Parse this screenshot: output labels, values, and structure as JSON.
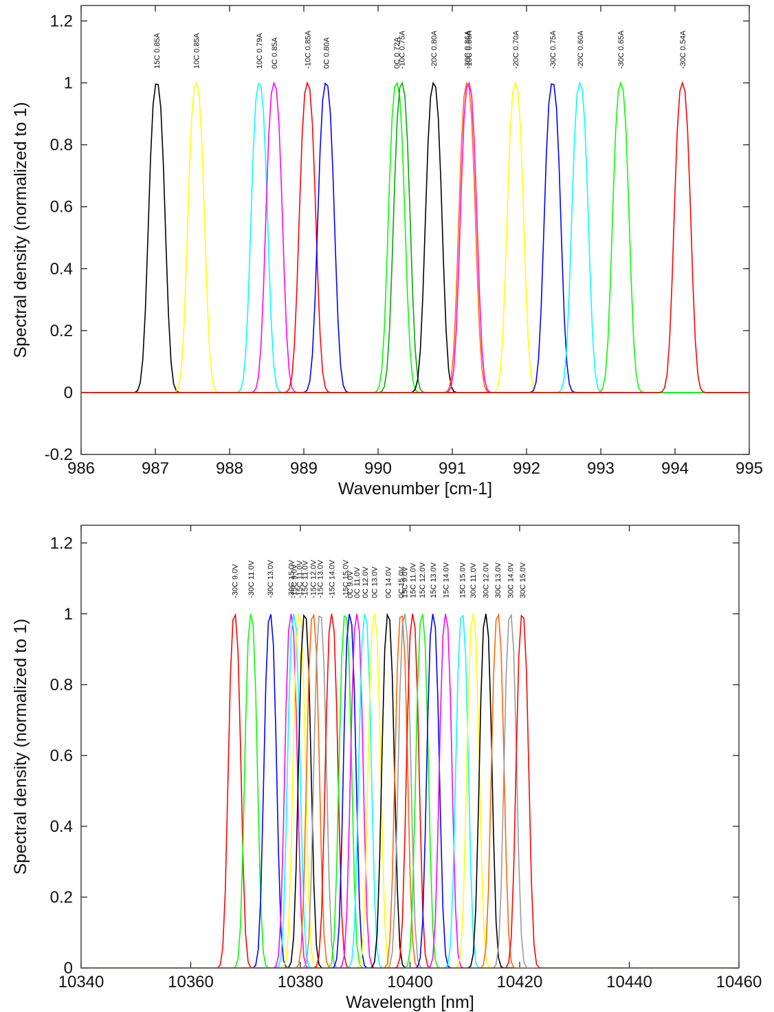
{
  "chart_data": [
    {
      "type": "line",
      "xlabel": "Wavenumber [cm-1]",
      "ylabel": "Spectral density (normalized to 1)",
      "xlim": [
        986,
        995
      ],
      "ylim": [
        -0.2,
        1.25
      ],
      "x_ticks": [
        "986",
        "987",
        "988",
        "989",
        "990",
        "991",
        "992",
        "993",
        "994",
        "995"
      ],
      "y_ticks": [
        "-0.2",
        "0",
        "0.2",
        "0.4",
        "0.6",
        "0.8",
        "1",
        "1.2"
      ],
      "grid": false,
      "series": [
        {
          "name": "15C 0.85A",
          "center": 987.02,
          "fwhm": 0.25,
          "color": "#000000"
        },
        {
          "name": "10C 0.85A",
          "center": 987.55,
          "fwhm": 0.25,
          "color": "#ffff00"
        },
        {
          "name": "10C 0.79A",
          "center": 988.4,
          "fwhm": 0.25,
          "color": "#00ffff"
        },
        {
          "name": "0C 0.85A",
          "center": 988.6,
          "fwhm": 0.25,
          "color": "#ff00ff"
        },
        {
          "name": "-10C 0.85A",
          "center": 989.05,
          "fwhm": 0.25,
          "color": "#ff0000"
        },
        {
          "name": "0C 0.80A",
          "center": 989.3,
          "fwhm": 0.25,
          "color": "#0000ff"
        },
        {
          "name": "0C 0.72A",
          "center": 990.25,
          "fwhm": 0.25,
          "color": "#00ff00"
        },
        {
          "name": "-10C 0.75A",
          "center": 990.32,
          "fwhm": 0.25,
          "color": "#00aa00"
        },
        {
          "name": "-20C 0.80A",
          "center": 990.75,
          "fwhm": 0.25,
          "color": "#000000"
        },
        {
          "name": "-30C 0.86A",
          "center": 991.2,
          "fwhm": 0.25,
          "color": "#ff6600"
        },
        {
          "name": "-10C 0.66A",
          "center": 991.22,
          "fwhm": 0.25,
          "color": "#ff00ff"
        },
        {
          "name": "-20C 0.70A",
          "center": 991.85,
          "fwhm": 0.25,
          "color": "#ffff00"
        },
        {
          "name": "-30C 0.75A",
          "center": 992.35,
          "fwhm": 0.25,
          "color": "#0000ff"
        },
        {
          "name": "-20C 0.60A",
          "center": 992.72,
          "fwhm": 0.25,
          "color": "#00ffff"
        },
        {
          "name": "-30C 0.65A",
          "center": 993.27,
          "fwhm": 0.25,
          "color": "#00ff00"
        },
        {
          "name": "-30C 0.54A",
          "center": 994.1,
          "fwhm": 0.25,
          "color": "#ff0000"
        }
      ]
    },
    {
      "type": "line",
      "xlabel": "Wavelength [nm]",
      "ylabel": "Spectral density (normalized to 1)",
      "xlim": [
        10340,
        10460
      ],
      "ylim": [
        0,
        1.25
      ],
      "x_ticks": [
        "10340",
        "10360",
        "10380",
        "10400",
        "10420",
        "10440",
        "10460"
      ],
      "y_ticks": [
        "0",
        "0.2",
        "0.4",
        "0.6",
        "0.8",
        "1",
        "1.2"
      ],
      "grid": false,
      "series": [
        {
          "name": "-30C 9.0V",
          "center": 10368.0,
          "fwhm": 2.6,
          "color": "#ff0000"
        },
        {
          "name": "-30C 11.0V",
          "center": 10371.0,
          "fwhm": 2.6,
          "color": "#00ff00"
        },
        {
          "name": "-30C 13.0V",
          "center": 10374.5,
          "fwhm": 2.6,
          "color": "#0000ff"
        },
        {
          "name": "-30C 15.0V",
          "center": 10378.3,
          "fwhm": 2.6,
          "color": "#ff00ff"
        },
        {
          "name": "-15C 9.0V",
          "center": 10378.8,
          "fwhm": 2.6,
          "color": "#00ffff"
        },
        {
          "name": "-15C 11.0V",
          "center": 10379.8,
          "fwhm": 2.6,
          "color": "#ffff00"
        },
        {
          "name": "-15C 11.0V",
          "center": 10380.8,
          "fwhm": 2.6,
          "color": "#000000"
        },
        {
          "name": "-15C 12.0V",
          "center": 10382.3,
          "fwhm": 2.6,
          "color": "#ff6600"
        },
        {
          "name": "-15C 13.0V",
          "center": 10383.6,
          "fwhm": 2.6,
          "color": "#999999"
        },
        {
          "name": "-15C 14.0V",
          "center": 10385.7,
          "fwhm": 2.6,
          "color": "#ff0000"
        },
        {
          "name": "-15C 15.0V",
          "center": 10388.2,
          "fwhm": 2.6,
          "color": "#00ff00"
        },
        {
          "name": "0C 9.0V",
          "center": 10389.0,
          "fwhm": 2.6,
          "color": "#0000ff"
        },
        {
          "name": "0C 11.0V",
          "center": 10390.3,
          "fwhm": 2.6,
          "color": "#ff00ff"
        },
        {
          "name": "0C 12.0V",
          "center": 10391.8,
          "fwhm": 2.6,
          "color": "#00ffff"
        },
        {
          "name": "0C 13.0V",
          "center": 10393.5,
          "fwhm": 2.6,
          "color": "#ffff00"
        },
        {
          "name": "0C 14.0V",
          "center": 10396.0,
          "fwhm": 2.6,
          "color": "#000000"
        },
        {
          "name": "0C 15.0V",
          "center": 10398.4,
          "fwhm": 2.6,
          "color": "#ff6600"
        },
        {
          "name": "15C 9.0V",
          "center": 10399.0,
          "fwhm": 2.6,
          "color": "#999999"
        },
        {
          "name": "15C 11.0V",
          "center": 10400.5,
          "fwhm": 2.6,
          "color": "#ff0000"
        },
        {
          "name": "15C 12.0V",
          "center": 10402.2,
          "fwhm": 2.6,
          "color": "#00ff00"
        },
        {
          "name": "15C 13.0V",
          "center": 10404.2,
          "fwhm": 2.6,
          "color": "#0000ff"
        },
        {
          "name": "15C 14.0V",
          "center": 10406.5,
          "fwhm": 2.6,
          "color": "#ff00ff"
        },
        {
          "name": "15C 15.0V",
          "center": 10409.5,
          "fwhm": 2.6,
          "color": "#00ffff"
        },
        {
          "name": "30C 11.0V",
          "center": 10411.5,
          "fwhm": 2.6,
          "color": "#ffff00"
        },
        {
          "name": "30C 12.0V",
          "center": 10413.8,
          "fwhm": 2.6,
          "color": "#000000"
        },
        {
          "name": "30C 13.0V",
          "center": 10416.0,
          "fwhm": 2.6,
          "color": "#ff6600"
        },
        {
          "name": "30C 14.0V",
          "center": 10418.3,
          "fwhm": 2.6,
          "color": "#999999"
        },
        {
          "name": "30C 15.0V",
          "center": 10420.5,
          "fwhm": 2.6,
          "color": "#ff0000"
        }
      ]
    }
  ],
  "top_labels": [
    "15C 0.85A",
    "10C 0.85A",
    "10C 0.79A",
    "0C 0.85A",
    "-10C 0.85A",
    "0C 0.80A",
    "0C 0.72A",
    "-10C 0.75A",
    "-20C 0.80A",
    "-30C 0.86A",
    "-10C 0.66A",
    "-20C 0.70A",
    "-30C 0.75A",
    "-20C 0.60A",
    "-30C 0.65A",
    "-30C 0.54A"
  ],
  "bottom_labels": [
    "-30C 9.0V",
    "-30C 11.0V",
    "-30C 13.0V",
    "-30C 15.0V",
    "-15C 9.0V",
    "-15C 11.0V",
    "-15C 11.0V",
    "-15C 12.0V",
    "-15C 13.0V",
    "-15C 14.0V",
    "-15C 15.0V",
    "0C 9.0V",
    "0C 11.0V",
    "0C 12.0V",
    "0C 13.0V",
    "0C 14.0V",
    "0C 15.0V",
    "15C 9.0V",
    "15C 11.0V",
    "15C 12.0V",
    "15C 13.0V",
    "15C 14.0V",
    "15C 15.0V",
    "30C 11.0V",
    "30C 12.0V",
    "30C 13.0V",
    "30C 14.0V",
    "30C 15.0V"
  ]
}
